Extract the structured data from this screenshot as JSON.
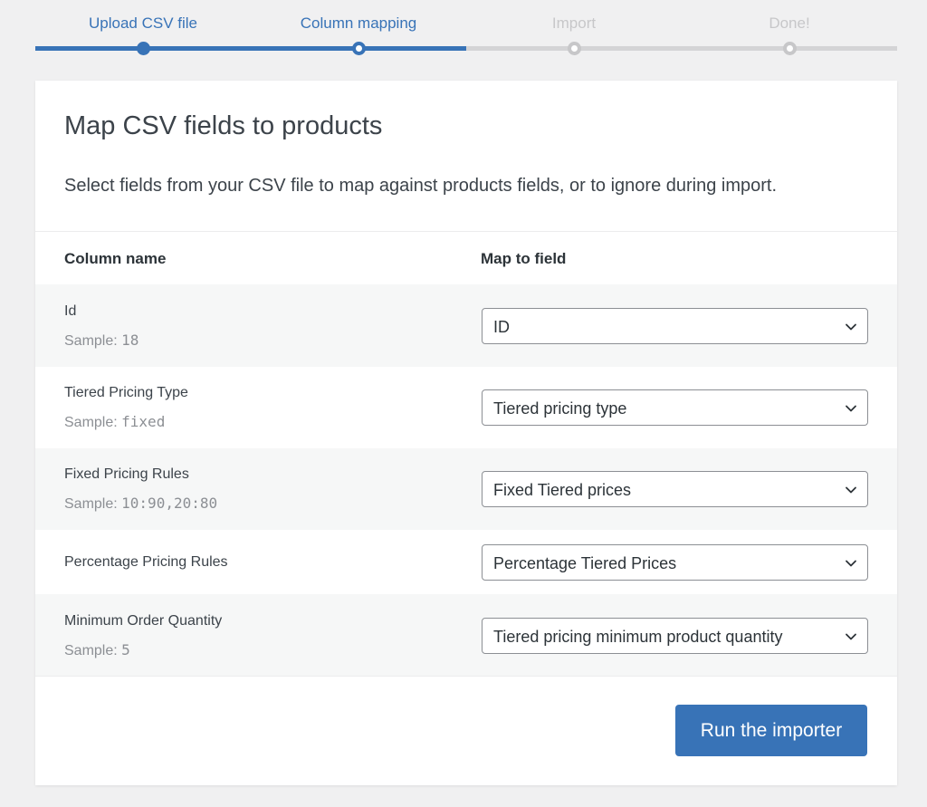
{
  "steps": [
    {
      "label": "Upload CSV file",
      "state": "done"
    },
    {
      "label": "Column mapping",
      "state": "current"
    },
    {
      "label": "Import",
      "state": "upcoming"
    },
    {
      "label": "Done!",
      "state": "upcoming"
    }
  ],
  "progress_fraction": 0.5,
  "card": {
    "title": "Map CSV fields to products",
    "description": "Select fields from your CSV file to map against products fields, or to ignore during import."
  },
  "table": {
    "columns": [
      "Column name",
      "Map to field"
    ],
    "rows": [
      {
        "name": "Id",
        "sample_label": "Sample:",
        "sample_value": "18",
        "mapped": "ID"
      },
      {
        "name": "Tiered Pricing Type",
        "sample_label": "Sample:",
        "sample_value": "fixed",
        "mapped": "Tiered pricing type"
      },
      {
        "name": "Fixed Pricing Rules",
        "sample_label": "Sample:",
        "sample_value": "10:90,20:80",
        "mapped": "Fixed Tiered prices"
      },
      {
        "name": "Percentage Pricing Rules",
        "sample_label": "",
        "sample_value": "",
        "mapped": "Percentage Tiered Prices"
      },
      {
        "name": "Minimum Order Quantity",
        "sample_label": "Sample:",
        "sample_value": "5",
        "mapped": "Tiered pricing minimum product quantity"
      }
    ]
  },
  "actions": {
    "run_label": "Run the importer"
  },
  "colors": {
    "accent": "#3873b7",
    "inactive": "#c7c7c9",
    "background": "#f0f0f1",
    "row_shade": "#f6f7f7"
  },
  "icons": {
    "select_arrow": "chevron-down-icon"
  }
}
